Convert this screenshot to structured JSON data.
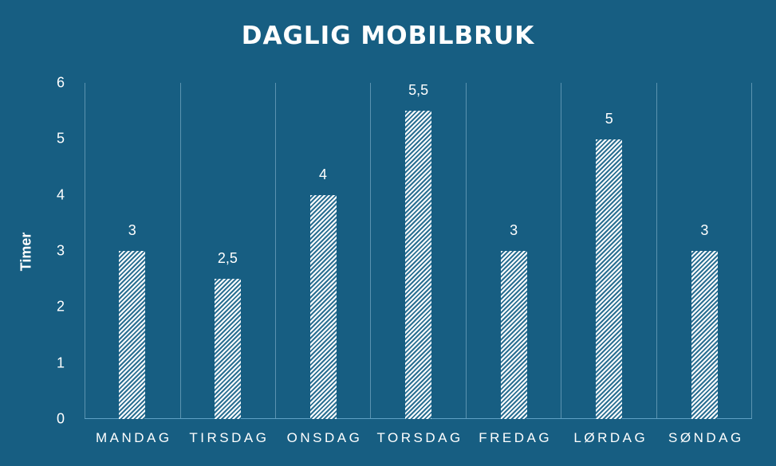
{
  "chart_data": {
    "type": "bar",
    "title": "DAGLIG MOBILBRUK",
    "xlabel": "",
    "ylabel": "Timer",
    "ylim": [
      0,
      6
    ],
    "yticks": [
      "0",
      "1",
      "2",
      "3",
      "4",
      "5",
      "6"
    ],
    "categories": [
      "MANDAG",
      "TIRSDAG",
      "ONSDAG",
      "TORSDAG",
      "FREDAG",
      "LØRDAG",
      "SØNDAG"
    ],
    "values": [
      3,
      2.5,
      4,
      5.5,
      3,
      5,
      3
    ],
    "data_labels": [
      "3",
      "2,5",
      "4",
      "5,5",
      "3",
      "5",
      "3"
    ],
    "grid": "vertical separators between categories",
    "legend": "none",
    "bar_fill": "white diagonal hatch",
    "colors": {
      "background": "#175e82",
      "bar": "#ffffff",
      "grid": "#5b93b0"
    }
  }
}
